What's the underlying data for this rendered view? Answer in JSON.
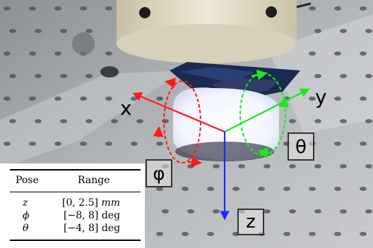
{
  "colors": {
    "x_axis": "#ff1a1a",
    "y_axis": "#1ee81e",
    "z_axis": "#1a2bff",
    "phi_arrow": "#ff1a1a",
    "theta_arrow": "#1ee81e"
  },
  "labels": {
    "x": "x",
    "y": "y",
    "z": "z",
    "phi": "φ",
    "theta": "θ"
  },
  "table": {
    "headers": [
      "Pose",
      "Range"
    ],
    "rows": [
      {
        "pose": "z",
        "range_prefix": "[0,  2.5]",
        "range_unit": "mm"
      },
      {
        "pose": "ϕ",
        "range_prefix": "[−8,  8]",
        "range_unit": "deg"
      },
      {
        "pose": "θ",
        "range_prefix": "[−4,  8]",
        "range_unit": "deg"
      }
    ]
  }
}
